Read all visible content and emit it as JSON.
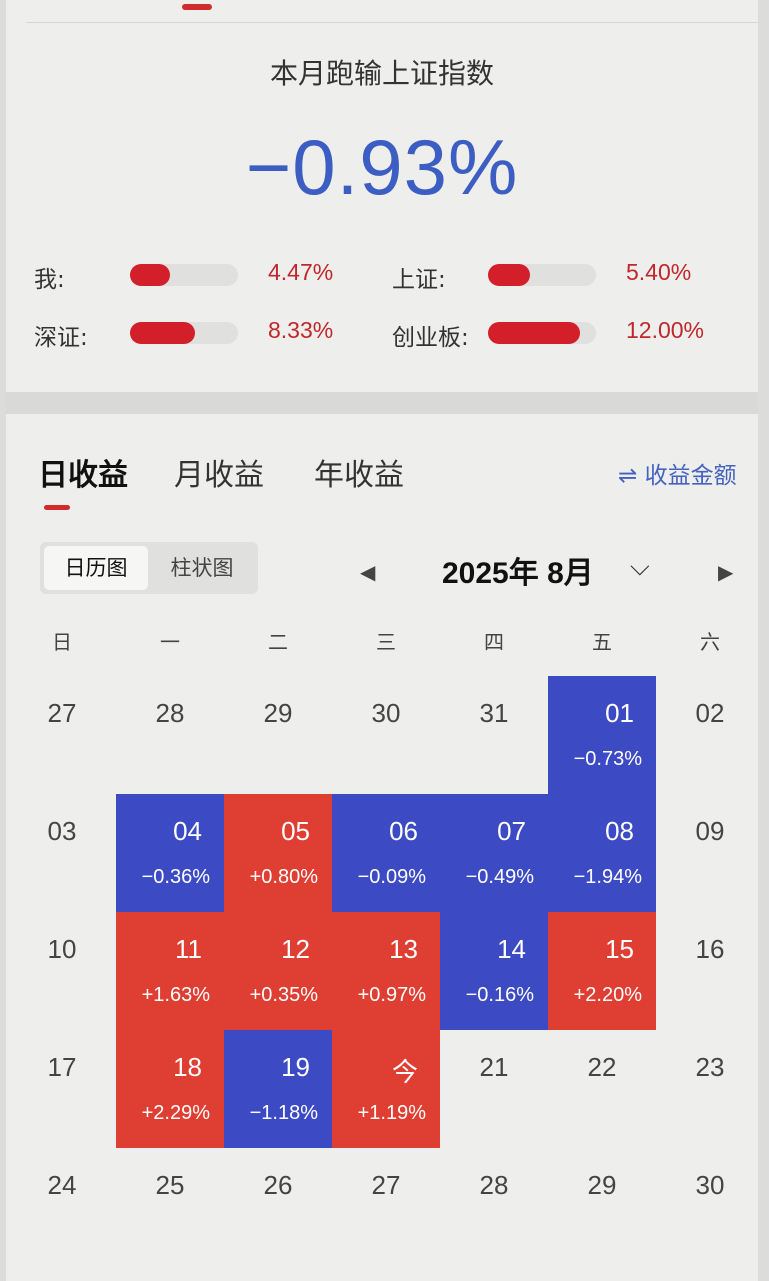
{
  "header": {
    "title": "本月跑输上证指数",
    "value": "−0.93%"
  },
  "comparison": [
    {
      "label": "我:",
      "value": "4.47%",
      "fill": 0.37
    },
    {
      "label": "上证:",
      "value": "5.40%",
      "fill": 0.39
    },
    {
      "label": "深证:",
      "value": "8.33%",
      "fill": 0.6
    },
    {
      "label": "创业板:",
      "value": "12.00%",
      "fill": 0.85
    }
  ],
  "tabs": [
    {
      "label": "日收益",
      "active": true
    },
    {
      "label": "月收益",
      "active": false
    },
    {
      "label": "年收益",
      "active": false
    }
  ],
  "switch_link": "⇌ 收益金额",
  "view_toggle": {
    "calendar": "日历图",
    "bar": "柱状图"
  },
  "month_label": "2025年 8月",
  "weekdays": [
    "日",
    "一",
    "二",
    "三",
    "四",
    "五",
    "六"
  ],
  "colors": {
    "up": "#df3e32",
    "down": "#3c4bc3",
    "accent": "#d22b2b",
    "title_blue": "#3c5dc2"
  },
  "weeks": [
    [
      {
        "d": "27"
      },
      {
        "d": "28"
      },
      {
        "d": "29"
      },
      {
        "d": "30"
      },
      {
        "d": "31"
      },
      {
        "d": "01",
        "p": "−0.73%",
        "t": "down"
      },
      {
        "d": "02"
      }
    ],
    [
      {
        "d": "03"
      },
      {
        "d": "04",
        "p": "−0.36%",
        "t": "down"
      },
      {
        "d": "05",
        "p": "+0.80%",
        "t": "up"
      },
      {
        "d": "06",
        "p": "−0.09%",
        "t": "down"
      },
      {
        "d": "07",
        "p": "−0.49%",
        "t": "down"
      },
      {
        "d": "08",
        "p": "−1.94%",
        "t": "down"
      },
      {
        "d": "09"
      }
    ],
    [
      {
        "d": "10"
      },
      {
        "d": "11",
        "p": "+1.63%",
        "t": "up"
      },
      {
        "d": "12",
        "p": "+0.35%",
        "t": "up"
      },
      {
        "d": "13",
        "p": "+0.97%",
        "t": "up"
      },
      {
        "d": "14",
        "p": "−0.16%",
        "t": "down"
      },
      {
        "d": "15",
        "p": "+2.20%",
        "t": "up"
      },
      {
        "d": "16"
      }
    ],
    [
      {
        "d": "17"
      },
      {
        "d": "18",
        "p": "+2.29%",
        "t": "up"
      },
      {
        "d": "19",
        "p": "−1.18%",
        "t": "down"
      },
      {
        "d": "今",
        "p": "+1.19%",
        "t": "up"
      },
      {
        "d": "21"
      },
      {
        "d": "22"
      },
      {
        "d": "23"
      }
    ],
    [
      {
        "d": "24"
      },
      {
        "d": "25"
      },
      {
        "d": "26"
      },
      {
        "d": "27"
      },
      {
        "d": "28"
      },
      {
        "d": "29"
      },
      {
        "d": "30"
      }
    ]
  ]
}
